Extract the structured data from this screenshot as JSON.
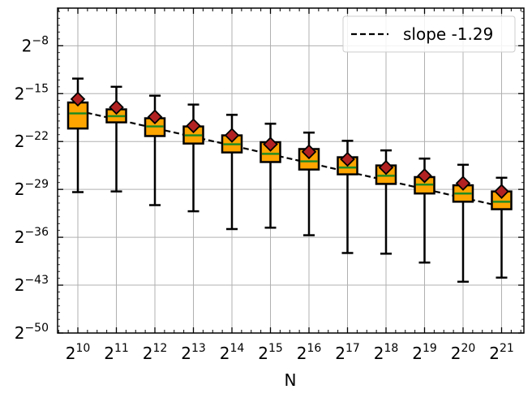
{
  "chart_data": {
    "type": "boxplot",
    "title": "",
    "xlabel": "N",
    "ylabel": "",
    "x_scale": "log2",
    "y_scale": "log2",
    "categories": [
      "2^10",
      "2^11",
      "2^12",
      "2^13",
      "2^14",
      "2^15",
      "2^16",
      "2^17",
      "2^18",
      "2^19",
      "2^20",
      "2^21"
    ],
    "x_tick_labels": [
      {
        "base": "2",
        "exp": "10"
      },
      {
        "base": "2",
        "exp": "11"
      },
      {
        "base": "2",
        "exp": "12"
      },
      {
        "base": "2",
        "exp": "13"
      },
      {
        "base": "2",
        "exp": "14"
      },
      {
        "base": "2",
        "exp": "15"
      },
      {
        "base": "2",
        "exp": "16"
      },
      {
        "base": "2",
        "exp": "17"
      },
      {
        "base": "2",
        "exp": "18"
      },
      {
        "base": "2",
        "exp": "19"
      },
      {
        "base": "2",
        "exp": "20"
      },
      {
        "base": "2",
        "exp": "21"
      }
    ],
    "y_tick_exponents": [
      -8,
      -15,
      -22,
      -29,
      -36,
      -43,
      -50
    ],
    "y_tick_labels": [
      {
        "base": "2",
        "exp": "−8"
      },
      {
        "base": "2",
        "exp": "−15"
      },
      {
        "base": "2",
        "exp": "−22"
      },
      {
        "base": "2",
        "exp": "−29"
      },
      {
        "base": "2",
        "exp": "−36"
      },
      {
        "base": "2",
        "exp": "−43"
      },
      {
        "base": "2",
        "exp": "−50"
      }
    ],
    "ylim_log2": [
      -50,
      -2.5
    ],
    "grid": true,
    "legend_position": "top-right",
    "series_values_unit": "log2 of value",
    "boxes": [
      {
        "whisker_low": -29.4,
        "q1": -20.1,
        "median": -17.9,
        "q3": -16.3,
        "whisker_high": -12.8,
        "mean": -15.8
      },
      {
        "whisker_low": -29.3,
        "q1": -19.2,
        "median": -18.3,
        "q3": -17.3,
        "whisker_high": -14.0,
        "mean": -17.0
      },
      {
        "whisker_low": -31.3,
        "q1": -21.2,
        "median": -19.8,
        "q3": -18.6,
        "whisker_high": -15.3,
        "mean": -18.4
      },
      {
        "whisker_low": -32.2,
        "q1": -22.3,
        "median": -21.1,
        "q3": -19.8,
        "whisker_high": -16.6,
        "mean": -19.7
      },
      {
        "whisker_low": -34.8,
        "q1": -23.6,
        "median": -22.4,
        "q3": -21.1,
        "whisker_high": -18.1,
        "mean": -21.1
      },
      {
        "whisker_low": -34.6,
        "q1": -25.0,
        "median": -23.8,
        "q3": -22.1,
        "whisker_high": -19.4,
        "mean": -22.4
      },
      {
        "whisker_low": -35.7,
        "q1": -26.1,
        "median": -24.9,
        "q3": -23.1,
        "whisker_high": -20.7,
        "mean": -23.5
      },
      {
        "whisker_low": -38.3,
        "q1": -26.8,
        "median": -25.8,
        "q3": -24.3,
        "whisker_high": -21.9,
        "mean": -24.6
      },
      {
        "whisker_low": -38.4,
        "q1": -28.2,
        "median": -27.0,
        "q3": -25.5,
        "whisker_high": -23.3,
        "mean": -25.8
      },
      {
        "whisker_low": -39.7,
        "q1": -29.6,
        "median": -28.3,
        "q3": -27.2,
        "whisker_high": -24.5,
        "mean": -27.0
      },
      {
        "whisker_low": -42.5,
        "q1": -30.8,
        "median": -29.6,
        "q3": -28.4,
        "whisker_high": -25.4,
        "mean": -28.1
      },
      {
        "whisker_low": -41.9,
        "q1": -31.9,
        "median": -30.8,
        "q3": -29.3,
        "whisker_high": -27.3,
        "mean": -29.3
      }
    ],
    "fit_line": {
      "name": "slope -1.29",
      "y_start_log2": -17.5,
      "y_end_log2": -31.5
    },
    "legend": [
      {
        "label": "slope -1.29",
        "style": "dashed"
      }
    ],
    "colors": {
      "box_fill": "#FFA500",
      "median": "#228B22",
      "mean_marker": "#B22222",
      "fit": "#000000",
      "grid": "#B0B0B0"
    }
  }
}
